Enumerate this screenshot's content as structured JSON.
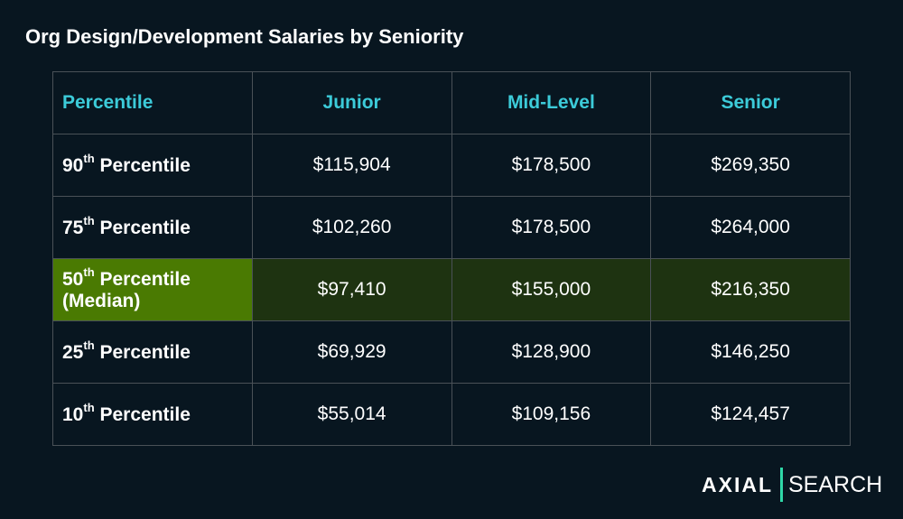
{
  "title": "Org Design/Development Salaries by Seniority",
  "table": {
    "headers": [
      "Percentile",
      "Junior",
      "Mid-Level",
      "Senior"
    ],
    "rows": [
      {
        "num": "90",
        "sup": "th",
        "label": "Percentile",
        "values": [
          "$115,904",
          "$178,500",
          "$269,350"
        ]
      },
      {
        "num": "75",
        "sup": "th",
        "label": "Percentile",
        "values": [
          "$102,260",
          "$178,500",
          "$264,000"
        ]
      },
      {
        "num": "50",
        "sup": "th",
        "label": "Percentile (Median)",
        "values": [
          "$97,410",
          "$155,000",
          "$216,350"
        ]
      },
      {
        "num": "25",
        "sup": "th",
        "label": "Percentile",
        "values": [
          "$69,929",
          "$128,900",
          "$146,250"
        ]
      },
      {
        "num": "10",
        "sup": "th",
        "label": "Percentile",
        "values": [
          "$55,014",
          "$109,156",
          "$124,457"
        ]
      }
    ]
  },
  "colors": {
    "header_text": "#3ccbd9",
    "median_label_bg": "#4a7a02",
    "median_row_bg": "#1e3311",
    "background": "#081620",
    "logo_bar": "#2fd8a8"
  },
  "logo": {
    "left": "AXIAL",
    "right": "SEARCH"
  }
}
